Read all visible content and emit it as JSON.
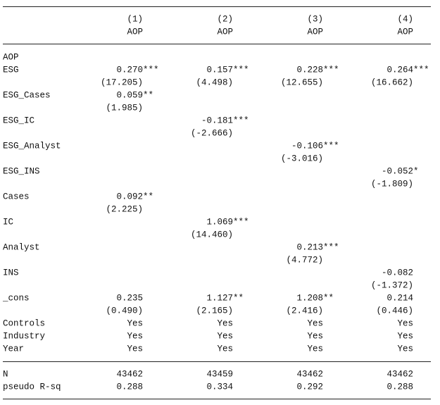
{
  "header": {
    "columns": [
      {
        "number": "(1)",
        "dep": "AOP"
      },
      {
        "number": "(2)",
        "dep": "AOP"
      },
      {
        "number": "(3)",
        "dep": "AOP"
      },
      {
        "number": "(4)",
        "dep": "AOP"
      }
    ]
  },
  "table": {
    "rows": [
      {
        "label": "AOP",
        "cells": [
          null,
          null,
          null,
          null
        ]
      },
      {
        "label": "ESG",
        "cells": [
          "0.270***",
          "0.157***",
          "0.228***",
          "0.264***"
        ]
      },
      {
        "label": null,
        "cells": [
          "(17.205)",
          "(4.498)",
          "(12.655)",
          "(16.662)"
        ]
      },
      {
        "label": "ESG_Cases",
        "cells": [
          "0.059**",
          null,
          null,
          null
        ]
      },
      {
        "label": null,
        "cells": [
          "(1.985)",
          null,
          null,
          null
        ]
      },
      {
        "label": "ESG_IC",
        "cells": [
          null,
          "-0.181***",
          null,
          null
        ]
      },
      {
        "label": null,
        "cells": [
          null,
          "(-2.666)",
          null,
          null
        ]
      },
      {
        "label": "ESG_Analyst",
        "cells": [
          null,
          null,
          "-0.106***",
          null
        ]
      },
      {
        "label": null,
        "cells": [
          null,
          null,
          "(-3.016)",
          null
        ]
      },
      {
        "label": "ESG_INS",
        "cells": [
          null,
          null,
          null,
          "-0.052*"
        ]
      },
      {
        "label": null,
        "cells": [
          null,
          null,
          null,
          "(-1.809)"
        ]
      },
      {
        "label": "Cases",
        "cells": [
          "0.092**",
          null,
          null,
          null
        ]
      },
      {
        "label": null,
        "cells": [
          "(2.225)",
          null,
          null,
          null
        ]
      },
      {
        "label": "IC",
        "cells": [
          null,
          "1.069***",
          null,
          null
        ]
      },
      {
        "label": null,
        "cells": [
          null,
          "(14.460)",
          null,
          null
        ]
      },
      {
        "label": "Analyst",
        "cells": [
          null,
          null,
          "0.213***",
          null
        ]
      },
      {
        "label": null,
        "cells": [
          null,
          null,
          "(4.772)",
          null
        ]
      },
      {
        "label": "INS",
        "cells": [
          null,
          null,
          null,
          "-0.082"
        ]
      },
      {
        "label": null,
        "cells": [
          null,
          null,
          null,
          "(-1.372)"
        ]
      },
      {
        "label": "_cons",
        "cells": [
          "0.235",
          "1.127**",
          "1.208**",
          "0.214"
        ]
      },
      {
        "label": null,
        "cells": [
          "(0.490)",
          "(2.165)",
          "(2.416)",
          "(0.446)"
        ]
      },
      {
        "label": "Controls",
        "cells": [
          "Yes",
          "Yes",
          "Yes",
          "Yes"
        ]
      },
      {
        "label": "Industry",
        "cells": [
          "Yes",
          "Yes",
          "Yes",
          "Yes"
        ]
      },
      {
        "label": "Year",
        "cells": [
          "Yes",
          "Yes",
          "Yes",
          "Yes"
        ]
      }
    ],
    "stats": [
      {
        "label": "N",
        "cells": [
          "43462",
          "43459",
          "43462",
          "43462"
        ]
      },
      {
        "label": "pseudo R-sq",
        "cells": [
          "0.288",
          "0.334",
          "0.292",
          "0.288"
        ]
      }
    ]
  }
}
